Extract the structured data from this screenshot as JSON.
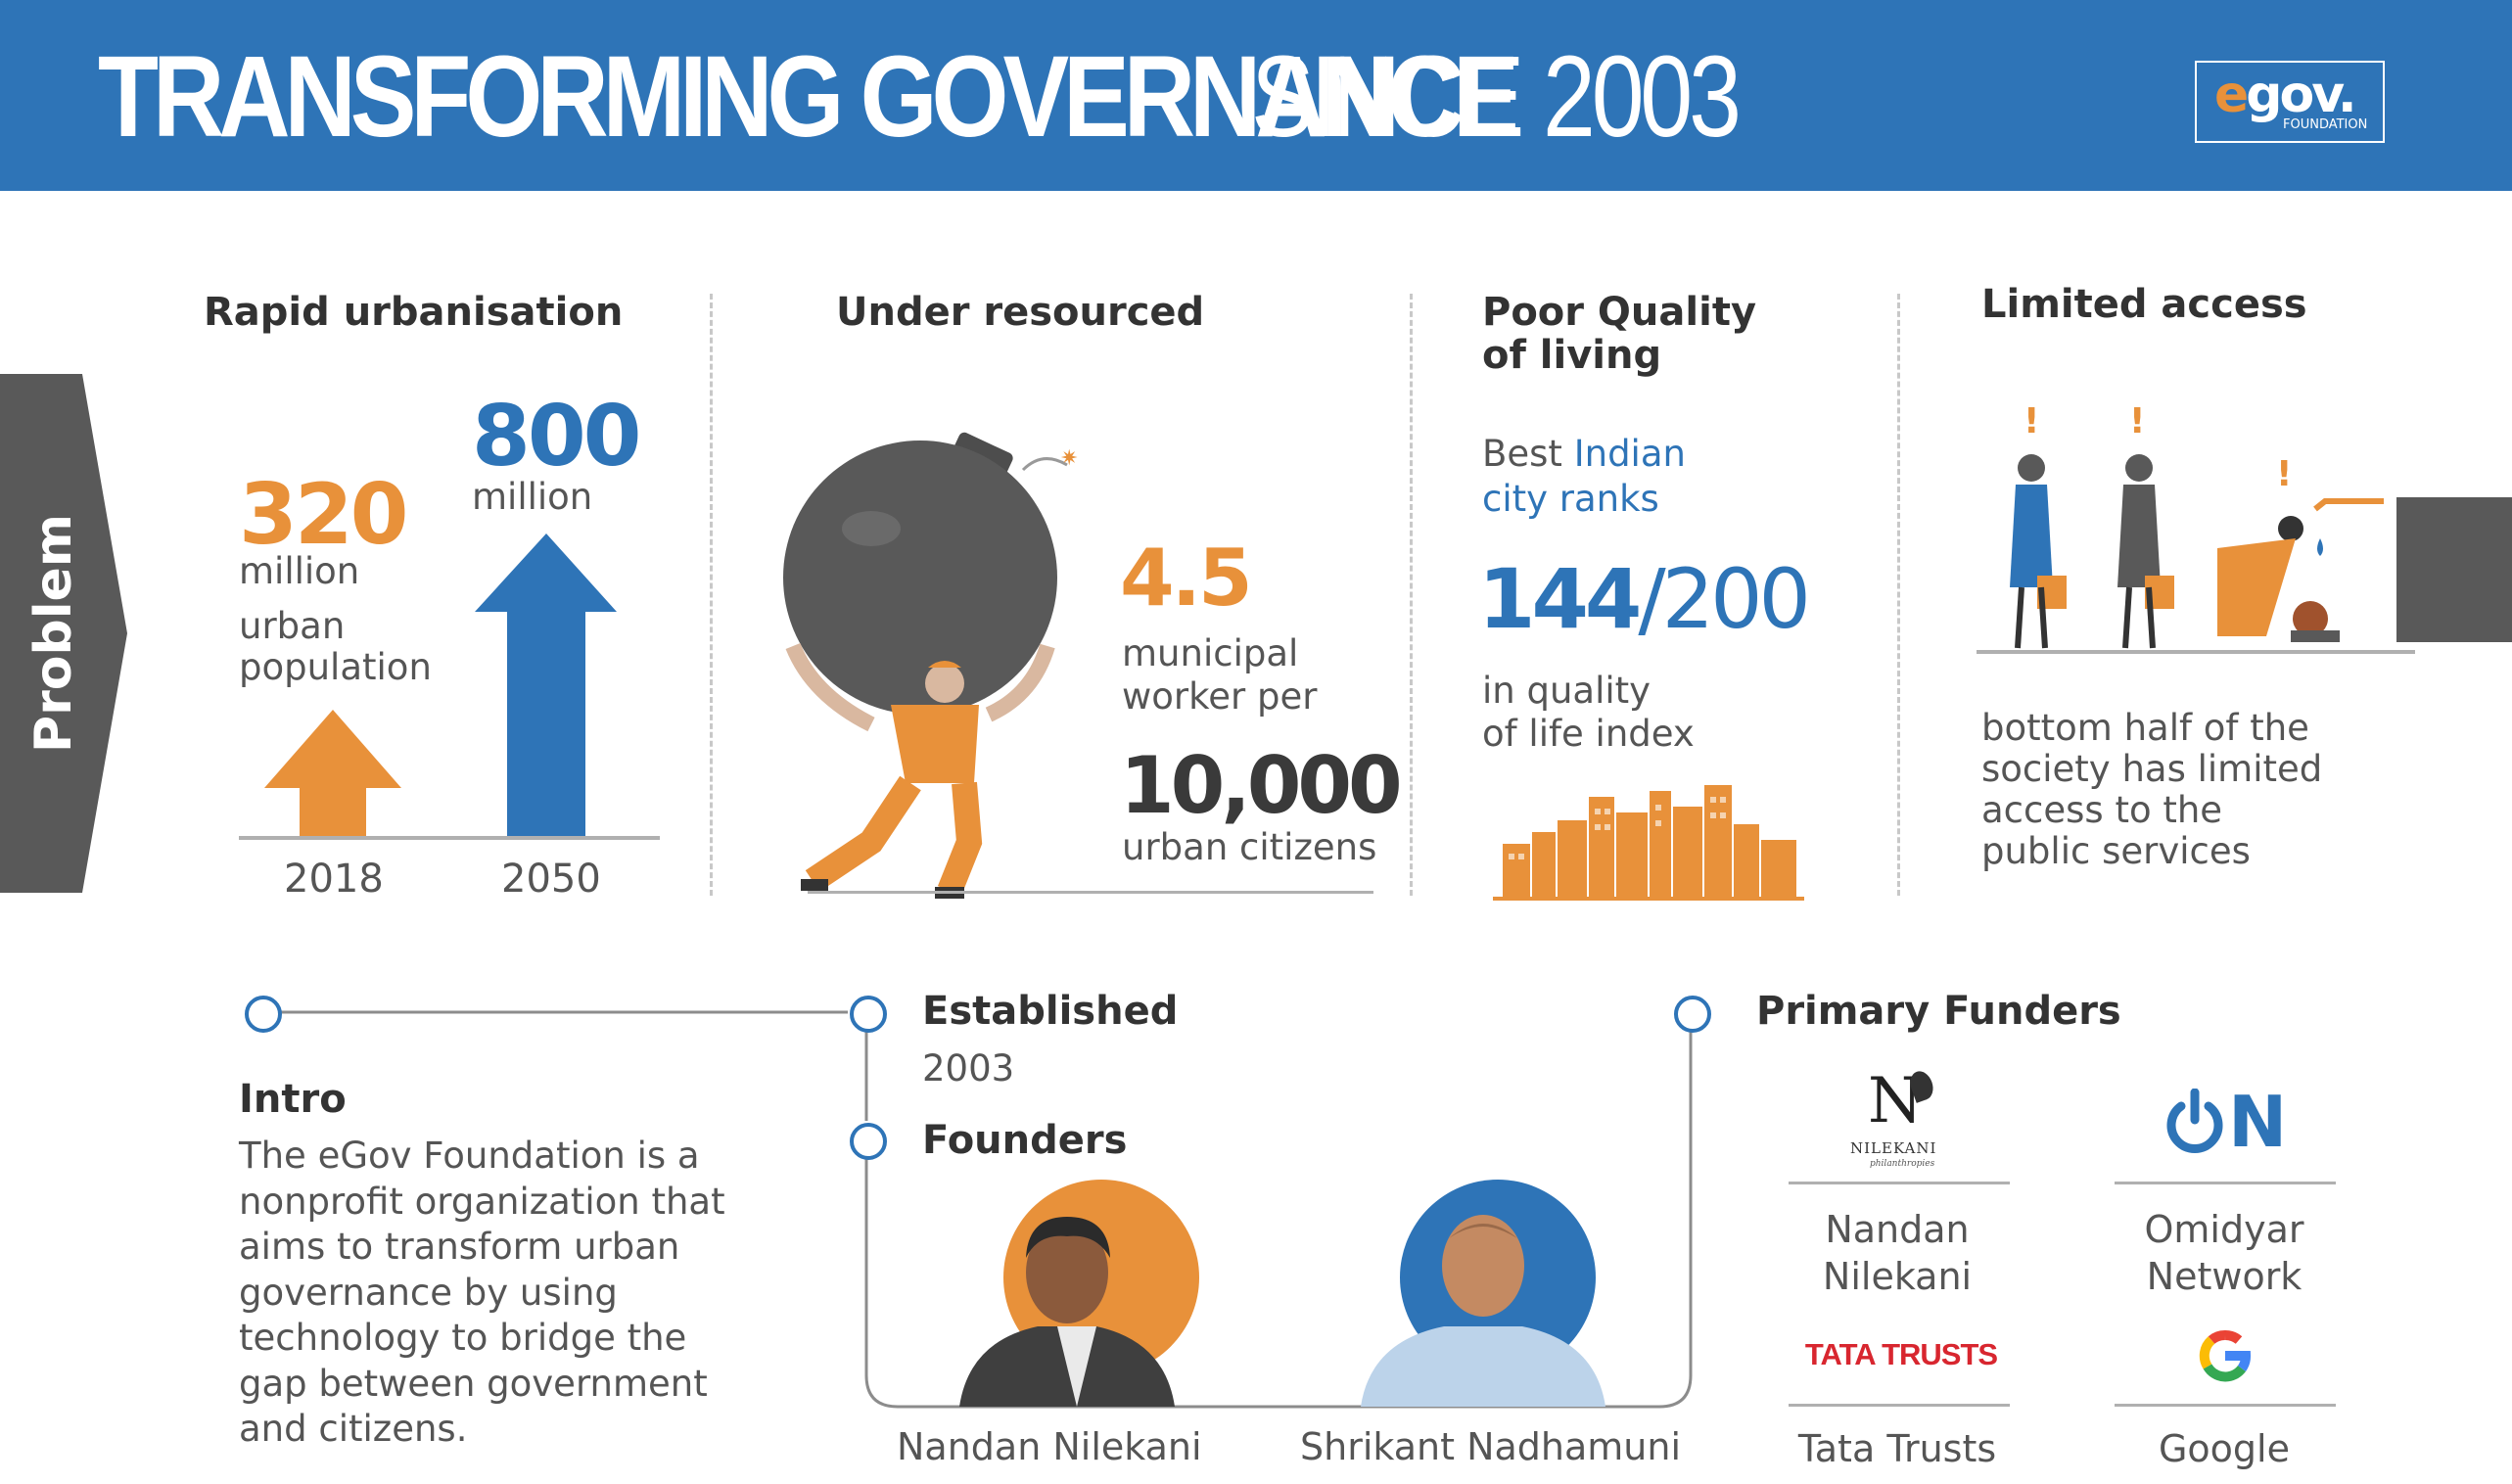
{
  "header": {
    "title_bold": "TRANSFORMING GOVERNANCE",
    "title_light": "SINCE 2003",
    "logo_text_e": "e",
    "logo_text_rest": "gov.",
    "logo_sub": "FOUNDATION"
  },
  "problem_tab": "Problem",
  "sections": {
    "urbanisation": {
      "title": "Rapid urbanisation",
      "value_2018": "320",
      "unit_2018": "million",
      "desc_2018_line1": "urban",
      "desc_2018_line2": "population",
      "value_2050": "800",
      "unit_2050": "million",
      "year_1": "2018",
      "year_2": "2050"
    },
    "resourced": {
      "title": "Under resourced",
      "value": "4.5",
      "line1": "municipal",
      "line2": "worker per",
      "value2": "10,000",
      "line3": "urban citizens"
    },
    "quality": {
      "title_line1": "Poor Quality",
      "title_line2": "of living",
      "best_prefix": "Best",
      "best_highlight": "Indian",
      "best_line2": "city ranks",
      "rank": "144",
      "rank_total": "/200",
      "index_line1": "in quality",
      "index_line2": "of life index"
    },
    "access": {
      "title": "Limited access",
      "desc_line1": "bottom half of the",
      "desc_line2": "society has limited",
      "desc_line3": "access to the",
      "desc_line4": "public services"
    }
  },
  "intro": {
    "title": "Intro",
    "lines": [
      "The eGov Foundation is a",
      "nonprofit organization that",
      "aims to transform urban",
      "governance by using",
      "technology to bridge the",
      "gap between government",
      "and citizens."
    ]
  },
  "established": {
    "title": "Established",
    "year": "2003"
  },
  "founders": {
    "title": "Founders",
    "names": [
      "Nandan Nilekani",
      "Shrikant Nadhamuni"
    ]
  },
  "funders": {
    "title": "Primary Funders",
    "nilekani_logo_text": "NILEKANI",
    "nilekani_logo_sub": "philanthropies",
    "nilekani_name_line1": "Nandan",
    "nilekani_name_line2": "Nilekani",
    "omidyar_name_line1": "Omidyar",
    "omidyar_name_line2": "Network",
    "tata_logo_text": "TATA TRUSTS",
    "tata_name": "Tata Trusts",
    "google_name": "Google"
  },
  "colors": {
    "blue": "#2e74b7",
    "orange": "#e8913a",
    "dark_gray": "#595959",
    "tata_red": "#d8262f"
  }
}
